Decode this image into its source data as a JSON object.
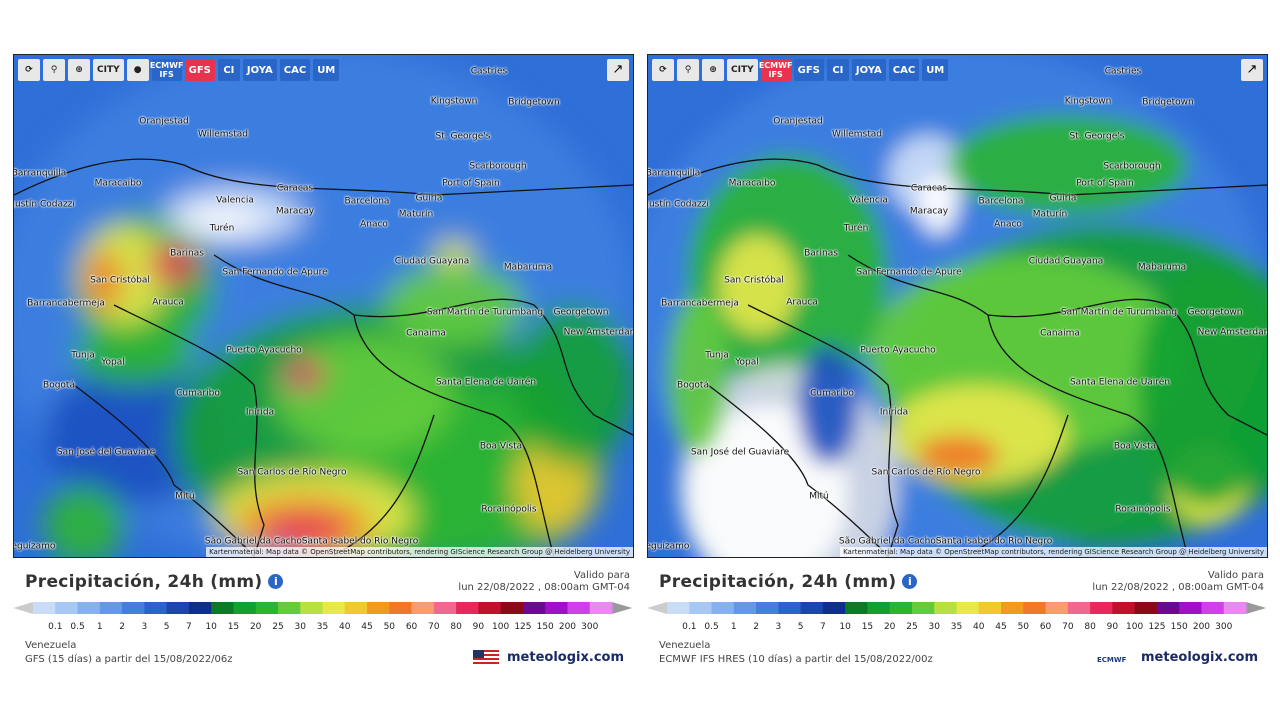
{
  "toolbar": {
    "city": "CITY",
    "models": [
      "ECMWF IFS",
      "GFS",
      "CI",
      "JOYA",
      "CAC",
      "UM"
    ]
  },
  "map_labels": [
    "Castries",
    "Kingstown",
    "Bridgetown",
    "Oranjestad",
    "Willemstad",
    "St. George's",
    "Scarborough",
    "Barranquilla",
    "Maracaibo",
    "Caracas",
    "Port of Spain",
    "Agustín Codazzi",
    "Valencia",
    "Barcelona",
    "Güiria",
    "Maracay",
    "Maturín",
    "Anaco",
    "Turén",
    "Barinas",
    "San Fernando de Apure",
    "Ciudad Guayana",
    "Mabaruma",
    "San Cristóbal",
    "Arauca",
    "Barrancabermeja",
    "San Martín de Turumbang",
    "Georgetown",
    "Canaima",
    "New Amsterdam",
    "Puerto Ayacucho",
    "Tunja",
    "Yopal",
    "Bogotá",
    "Santa Elena de Uairén",
    "Cumaribo",
    "Inírida",
    "Boa Vista",
    "San José del Guaviare",
    "San Carlos de Río Negro",
    "Mitú",
    "Rorainópolis",
    "São Gabriel da Cachoeira",
    "Santa Isabel do Rio Negro",
    "Leguízamo"
  ],
  "attribution": "Kartenmaterial: Map data © OpenStreetMap contributors, rendering GIScience Research Group @ Heidelberg University",
  "legend": {
    "title": "Precipitación, 24h (mm)",
    "valid_label": "Valido para",
    "valid_time": "lun 22/08/2022 , 08:00am GMT-04",
    "values": [
      "0.1",
      "0.5",
      "1",
      "2",
      "3",
      "5",
      "7",
      "10",
      "15",
      "20",
      "25",
      "30",
      "35",
      "40",
      "45",
      "50",
      "60",
      "70",
      "80",
      "90",
      "100",
      "125",
      "150",
      "200",
      "300"
    ],
    "region": "Venezuela",
    "site": "meteologix.com"
  },
  "panels": [
    {
      "active_model": 1,
      "model_text": "GFS (15 días) a partir del 15/08/2022/06z"
    },
    {
      "active_model": 0,
      "model_text": "ECMWF IFS HRES (10 días) a partir del 15/08/2022/00z",
      "logo": "ECMWF"
    }
  ]
}
